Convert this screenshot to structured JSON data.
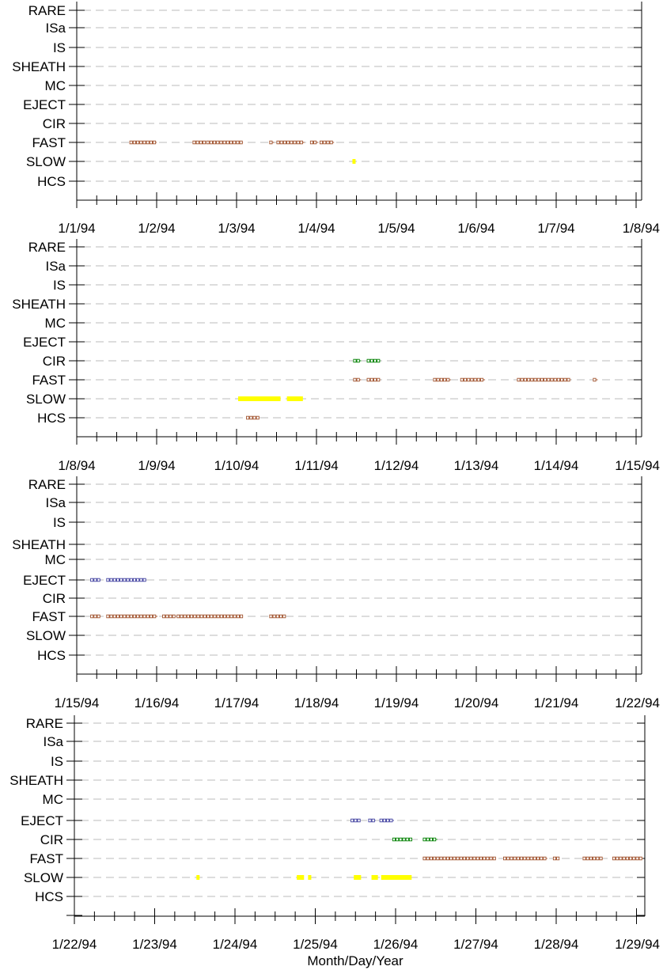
{
  "colors": {
    "FAST": "#a0522d",
    "SLOW": "#ffff00",
    "HCS": "#a0522d",
    "CIR": "#008000",
    "EJECT": "#4040a0",
    "grid": "#bbbbbb",
    "axis": "#000000"
  },
  "xlabel": "Month/Day/Year",
  "chart_data": [
    {
      "type": "scatter",
      "categories": [
        "RARE",
        "ISa",
        "IS",
        "SHEATH",
        "MC",
        "EJECT",
        "CIR",
        "FAST",
        "SLOW",
        "HCS"
      ],
      "xticks": [
        "1/1/94",
        "1/2/94",
        "1/3/94",
        "1/4/94",
        "1/5/94",
        "1/6/94",
        "1/7/94",
        "1/8/94"
      ],
      "xlim": [
        0,
        7
      ],
      "grid": true,
      "series": [
        {
          "category": "FAST",
          "ranges": [
            [
              0.68,
              1.0
            ],
            [
              1.47,
              1.6
            ],
            [
              1.64,
              2.08
            ],
            [
              2.43,
              2.47
            ],
            [
              2.52,
              2.77
            ],
            [
              2.81,
              2.85
            ],
            [
              2.94,
              3.02
            ],
            [
              3.06,
              3.22
            ]
          ]
        },
        {
          "category": "SLOW",
          "ranges": [
            [
              3.45,
              3.46
            ]
          ]
        }
      ]
    },
    {
      "type": "scatter",
      "categories": [
        "RARE",
        "ISa",
        "IS",
        "SHEATH",
        "MC",
        "EJECT",
        "CIR",
        "FAST",
        "SLOW",
        "HCS"
      ],
      "xticks": [
        "1/8/94",
        "1/9/94",
        "1/10/94",
        "1/11/94",
        "1/12/94",
        "1/13/94",
        "1/14/94",
        "1/15/94"
      ],
      "xlim": [
        0,
        7
      ],
      "grid": true,
      "series": [
        {
          "category": "CIR",
          "ranges": [
            [
              3.48,
              3.56
            ],
            [
              3.65,
              3.8
            ]
          ]
        },
        {
          "category": "FAST",
          "ranges": [
            [
              3.48,
              3.56
            ],
            [
              3.65,
              3.8
            ],
            [
              4.48,
              4.68
            ],
            [
              4.82,
              5.11
            ],
            [
              5.53,
              6.18
            ],
            [
              6.48,
              6.52
            ]
          ]
        },
        {
          "category": "SLOW",
          "ranges": [
            [
              2.02,
              2.55
            ],
            [
              2.63,
              2.83
            ]
          ]
        },
        {
          "category": "HCS",
          "ranges": [
            [
              2.14,
              2.29
            ]
          ]
        }
      ]
    },
    {
      "type": "scatter",
      "categories": [
        "RARE",
        "ISa",
        "IS",
        "SHEATH",
        "MC",
        "EJECT",
        "CIR",
        "FAST",
        "SLOW",
        "HCS"
      ],
      "xticks": [
        "1/15/94",
        "1/16/94",
        "1/17/94",
        "1/18/94",
        "1/19/94",
        "1/20/94",
        "1/21/94",
        "1/22/94"
      ],
      "xlim": [
        0,
        7
      ],
      "grid": true,
      "series": [
        {
          "category": "EJECT",
          "ranges": [
            [
              0.19,
              0.3
            ],
            [
              0.39,
              0.87
            ]
          ]
        },
        {
          "category": "FAST",
          "ranges": [
            [
              0.19,
              0.3
            ],
            [
              0.39,
              1.01
            ],
            [
              1.09,
              1.22
            ],
            [
              1.27,
              2.08
            ],
            [
              2.43,
              2.6
            ]
          ]
        }
      ]
    },
    {
      "type": "scatter",
      "categories": [
        "RARE",
        "ISa",
        "IS",
        "SHEATH",
        "MC",
        "EJECT",
        "CIR",
        "FAST",
        "SLOW",
        "HCS"
      ],
      "xticks": [
        "1/22/94",
        "1/23/94",
        "1/24/94",
        "1/25/94",
        "1/26/94",
        "1/27/94",
        "1/28/94",
        "1/29/94"
      ],
      "xlim": [
        0,
        7.08
      ],
      "grid": true,
      "series": [
        {
          "category": "EJECT",
          "ranges": [
            [
              3.46,
              3.55
            ],
            [
              3.68,
              3.75
            ],
            [
              3.82,
              3.98
            ]
          ]
        },
        {
          "category": "CIR",
          "ranges": [
            [
              3.98,
              4.2
            ],
            [
              4.36,
              4.52
            ]
          ]
        },
        {
          "category": "FAST",
          "ranges": [
            [
              4.36,
              5.25
            ],
            [
              5.36,
              5.89
            ],
            [
              5.98,
              6.04
            ],
            [
              6.35,
              6.58
            ],
            [
              6.72,
              7.08
            ]
          ]
        },
        {
          "category": "SLOW",
          "ranges": [
            [
              1.52,
              1.55
            ],
            [
              2.77,
              2.86
            ],
            [
              2.91,
              2.95
            ],
            [
              3.48,
              3.57
            ],
            [
              3.7,
              3.78
            ],
            [
              3.82,
              4.2
            ]
          ]
        }
      ]
    }
  ]
}
